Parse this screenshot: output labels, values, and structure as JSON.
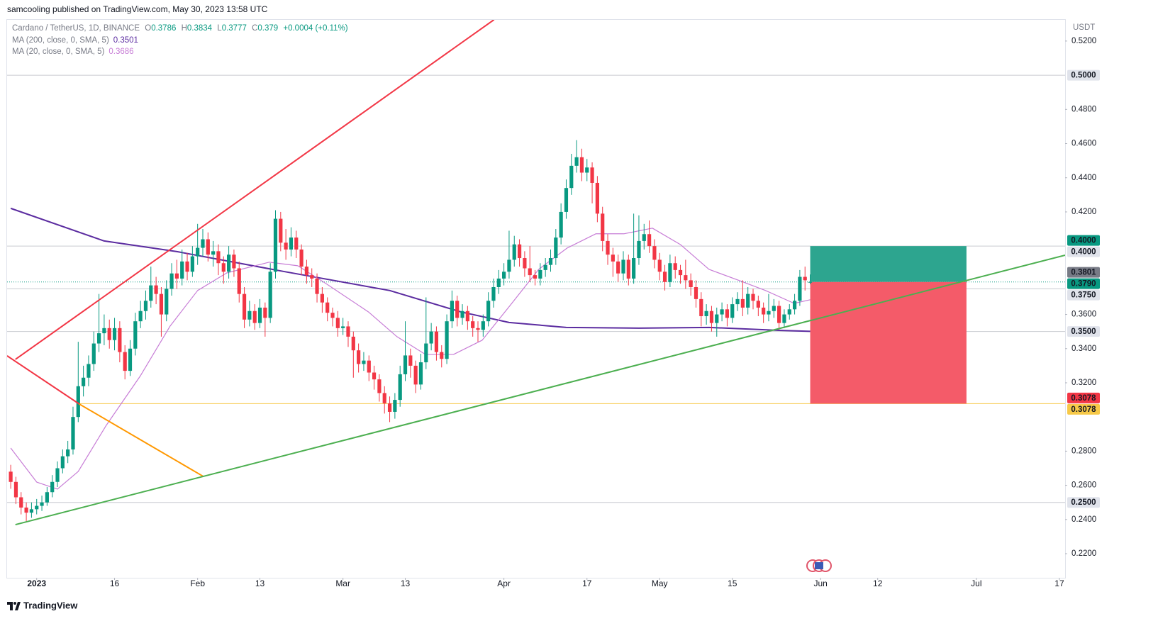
{
  "chart_data": {
    "type": "candlestick",
    "publisher": "samcooling published on TradingView.com, May 30, 2023 13:58 UTC",
    "title": "Cardano / TetherUS, 1D, BINANCE",
    "ohlc_labels": [
      "O",
      "H",
      "L",
      "C"
    ],
    "change": "+0.0004 (+0.11%)",
    "currency": "USDT",
    "brand": "TradingView",
    "up_color": "#089981",
    "down_color": "#f23645",
    "open": [
      0.268,
      0.262,
      0.253,
      0.247,
      0.244,
      0.246,
      0.248,
      0.25,
      0.256,
      0.262,
      0.27,
      0.277,
      0.281,
      0.3,
      0.318,
      0.323,
      0.331,
      0.343,
      0.349,
      0.352,
      0.345,
      0.352,
      0.338,
      0.327,
      0.34,
      0.356,
      0.362,
      0.368,
      0.377,
      0.372,
      0.36,
      0.375,
      0.384,
      0.381,
      0.391,
      0.385,
      0.394,
      0.399,
      0.404,
      0.395,
      0.397,
      0.39,
      0.385,
      0.395,
      0.387,
      0.372,
      0.357,
      0.362,
      0.355,
      0.364,
      0.358,
      0.385,
      0.416,
      0.402,
      0.398,
      0.405,
      0.398,
      0.388,
      0.383,
      0.381,
      0.372,
      0.367,
      0.361,
      0.358,
      0.352,
      0.353,
      0.347,
      0.339,
      0.331,
      0.333,
      0.326,
      0.322,
      0.314,
      0.308,
      0.303,
      0.31,
      0.325,
      0.336,
      0.33,
      0.319,
      0.332,
      0.343,
      0.35,
      0.338,
      0.334,
      0.356,
      0.368,
      0.358,
      0.362,
      0.356,
      0.352,
      0.351,
      0.356,
      0.368,
      0.376,
      0.381,
      0.385,
      0.392,
      0.401,
      0.393,
      0.387,
      0.383,
      0.381,
      0.386,
      0.389,
      0.393,
      0.405,
      0.42,
      0.434,
      0.447,
      0.452,
      0.443,
      0.446,
      0.437,
      0.419,
      0.403,
      0.395,
      0.391,
      0.384,
      0.392,
      0.381,
      0.393,
      0.403,
      0.407,
      0.4,
      0.392,
      0.385,
      0.379,
      0.39,
      0.386,
      0.383,
      0.38,
      0.376,
      0.369,
      0.359,
      0.362,
      0.355,
      0.36,
      0.363,
      0.358,
      0.366,
      0.369,
      0.364,
      0.372,
      0.368,
      0.364,
      0.36,
      0.362,
      0.365,
      0.355,
      0.36,
      0.363,
      0.368,
      0.382,
      0.3786
    ],
    "high": [
      0.272,
      0.265,
      0.256,
      0.25,
      0.25,
      0.252,
      0.254,
      0.259,
      0.266,
      0.274,
      0.281,
      0.286,
      0.306,
      0.344,
      0.33,
      0.336,
      0.35,
      0.372,
      0.36,
      0.357,
      0.358,
      0.356,
      0.342,
      0.345,
      0.361,
      0.368,
      0.374,
      0.388,
      0.382,
      0.376,
      0.38,
      0.39,
      0.392,
      0.398,
      0.396,
      0.4,
      0.413,
      0.41,
      0.408,
      0.403,
      0.401,
      0.394,
      0.4,
      0.398,
      0.391,
      0.376,
      0.368,
      0.366,
      0.369,
      0.367,
      0.39,
      0.421,
      0.42,
      0.41,
      0.411,
      0.409,
      0.401,
      0.392,
      0.387,
      0.384,
      0.376,
      0.37,
      0.364,
      0.362,
      0.358,
      0.356,
      0.35,
      0.343,
      0.338,
      0.336,
      0.33,
      0.325,
      0.318,
      0.312,
      0.314,
      0.33,
      0.356,
      0.34,
      0.333,
      0.337,
      0.37,
      0.355,
      0.353,
      0.342,
      0.36,
      0.374,
      0.371,
      0.366,
      0.365,
      0.359,
      0.356,
      0.36,
      0.373,
      0.381,
      0.386,
      0.39,
      0.409,
      0.406,
      0.404,
      0.397,
      0.4,
      0.386,
      0.39,
      0.393,
      0.398,
      0.41,
      0.425,
      0.439,
      0.454,
      0.462,
      0.457,
      0.451,
      0.449,
      0.441,
      0.423,
      0.407,
      0.399,
      0.395,
      0.397,
      0.395,
      0.419,
      0.418,
      0.413,
      0.415,
      0.404,
      0.396,
      0.389,
      0.395,
      0.394,
      0.389,
      0.392,
      0.384,
      0.38,
      0.373,
      0.366,
      0.365,
      0.364,
      0.367,
      0.366,
      0.37,
      0.373,
      0.38,
      0.376,
      0.375,
      0.371,
      0.367,
      0.372,
      0.369,
      0.368,
      0.363,
      0.366,
      0.372,
      0.386,
      0.388,
      0.3834
    ],
    "low": [
      0.258,
      0.249,
      0.243,
      0.239,
      0.241,
      0.243,
      0.245,
      0.248,
      0.253,
      0.259,
      0.267,
      0.273,
      0.278,
      0.297,
      0.312,
      0.318,
      0.327,
      0.338,
      0.342,
      0.34,
      0.339,
      0.332,
      0.322,
      0.324,
      0.336,
      0.352,
      0.357,
      0.364,
      0.366,
      0.347,
      0.356,
      0.371,
      0.375,
      0.377,
      0.38,
      0.382,
      0.389,
      0.394,
      0.391,
      0.388,
      0.383,
      0.378,
      0.381,
      0.382,
      0.367,
      0.352,
      0.353,
      0.351,
      0.352,
      0.347,
      0.355,
      0.381,
      0.397,
      0.392,
      0.394,
      0.393,
      0.383,
      0.378,
      0.376,
      0.367,
      0.361,
      0.356,
      0.353,
      0.347,
      0.348,
      0.341,
      0.323,
      0.326,
      0.327,
      0.321,
      0.316,
      0.309,
      0.302,
      0.297,
      0.299,
      0.306,
      0.321,
      0.323,
      0.314,
      0.316,
      0.328,
      0.339,
      0.333,
      0.329,
      0.331,
      0.352,
      0.353,
      0.354,
      0.351,
      0.347,
      0.344,
      0.347,
      0.353,
      0.364,
      0.372,
      0.377,
      0.381,
      0.388,
      0.388,
      0.382,
      0.379,
      0.377,
      0.377,
      0.382,
      0.385,
      0.389,
      0.401,
      0.416,
      0.43,
      0.443,
      0.438,
      0.438,
      0.425,
      0.414,
      0.397,
      0.389,
      0.382,
      0.379,
      0.38,
      0.377,
      0.378,
      0.389,
      0.398,
      0.396,
      0.387,
      0.38,
      0.374,
      0.376,
      0.381,
      0.378,
      0.375,
      0.371,
      0.364,
      0.353,
      0.354,
      0.35,
      0.347,
      0.356,
      0.353,
      0.355,
      0.362,
      0.359,
      0.36,
      0.363,
      0.359,
      0.355,
      0.356,
      0.358,
      0.351,
      0.352,
      0.357,
      0.36,
      0.365,
      0.374,
      0.3777
    ],
    "close": [
      0.262,
      0.253,
      0.247,
      0.244,
      0.246,
      0.248,
      0.25,
      0.256,
      0.262,
      0.27,
      0.277,
      0.281,
      0.3,
      0.318,
      0.323,
      0.331,
      0.343,
      0.349,
      0.352,
      0.345,
      0.352,
      0.338,
      0.327,
      0.34,
      0.356,
      0.362,
      0.368,
      0.377,
      0.372,
      0.36,
      0.375,
      0.384,
      0.381,
      0.391,
      0.385,
      0.394,
      0.399,
      0.404,
      0.395,
      0.397,
      0.39,
      0.385,
      0.395,
      0.387,
      0.372,
      0.357,
      0.362,
      0.355,
      0.364,
      0.358,
      0.385,
      0.416,
      0.402,
      0.398,
      0.405,
      0.398,
      0.388,
      0.383,
      0.381,
      0.372,
      0.367,
      0.361,
      0.358,
      0.352,
      0.353,
      0.347,
      0.339,
      0.331,
      0.333,
      0.326,
      0.322,
      0.314,
      0.308,
      0.303,
      0.31,
      0.325,
      0.336,
      0.33,
      0.319,
      0.332,
      0.343,
      0.35,
      0.338,
      0.334,
      0.356,
      0.368,
      0.358,
      0.362,
      0.356,
      0.352,
      0.351,
      0.356,
      0.368,
      0.376,
      0.381,
      0.385,
      0.392,
      0.401,
      0.393,
      0.387,
      0.383,
      0.381,
      0.386,
      0.389,
      0.393,
      0.405,
      0.42,
      0.434,
      0.447,
      0.452,
      0.443,
      0.446,
      0.437,
      0.419,
      0.403,
      0.395,
      0.391,
      0.384,
      0.392,
      0.381,
      0.393,
      0.403,
      0.407,
      0.4,
      0.392,
      0.385,
      0.379,
      0.39,
      0.386,
      0.383,
      0.38,
      0.376,
      0.369,
      0.359,
      0.362,
      0.355,
      0.36,
      0.363,
      0.358,
      0.366,
      0.369,
      0.364,
      0.372,
      0.368,
      0.364,
      0.36,
      0.362,
      0.365,
      0.355,
      0.36,
      0.363,
      0.368,
      0.382,
      0.38,
      0.379
    ],
    "xlim": [
      -0.7,
      203.1
    ],
    "xticks": [
      {
        "value": 5,
        "label": "2023"
      },
      {
        "value": 20,
        "label": "16"
      },
      {
        "value": 36,
        "label": "Feb"
      },
      {
        "value": 48,
        "label": "13"
      },
      {
        "value": 64,
        "label": "Mar"
      },
      {
        "value": 76,
        "label": "13"
      },
      {
        "value": 95,
        "label": "Apr"
      },
      {
        "value": 111,
        "label": "17"
      },
      {
        "value": 125,
        "label": "May"
      },
      {
        "value": 139,
        "label": "15"
      },
      {
        "value": 156,
        "label": "Jun"
      },
      {
        "value": 167,
        "label": "12"
      },
      {
        "value": 186,
        "label": "Jul"
      },
      {
        "value": 202,
        "label": "17"
      }
    ],
    "ylim": [
      0.2059,
      0.5324
    ],
    "yticks": [
      {
        "value": 0.52,
        "label": "0.5200"
      },
      {
        "value": 0.48,
        "label": "0.4800"
      },
      {
        "value": 0.46,
        "label": "0.4600"
      },
      {
        "value": 0.44,
        "label": "0.4400"
      },
      {
        "value": 0.42,
        "label": "0.4200"
      },
      {
        "value": 0.36,
        "label": "0.3600"
      },
      {
        "value": 0.34,
        "label": "0.3400"
      },
      {
        "value": 0.32,
        "label": "0.3200"
      },
      {
        "value": 0.28,
        "label": "0.2800"
      },
      {
        "value": 0.26,
        "label": "0.2600"
      },
      {
        "value": 0.24,
        "label": "0.2400"
      },
      {
        "value": 0.22,
        "label": "0.2200"
      }
    ],
    "grid": false,
    "indicators": [
      {
        "name": "MA (200, close, 0, SMA, 5)",
        "color": "#5b2ca0",
        "x": [
          0,
          18,
          32,
          52.5,
          73,
          86.7,
          96,
          107,
          121,
          134.5,
          148,
          154
        ],
        "values": [
          0.4221,
          0.403,
          0.3968,
          0.3852,
          0.374,
          0.3615,
          0.3553,
          0.3524,
          0.352,
          0.3524,
          0.3507,
          0.3501
        ]
      },
      {
        "name": "MA (20, close, 0, SMA, 5)",
        "color": "#c77dd6",
        "x": [
          0,
          5,
          9,
          13,
          18.4,
          25,
          30.7,
          36,
          41.6,
          49.8,
          55.3,
          60.7,
          68.9,
          74.4,
          79.9,
          85.3,
          90.8,
          96.3,
          101.7,
          107.2,
          112.7,
          118.1,
          123.6,
          129,
          134.5,
          140,
          145.4,
          150.9,
          154
        ],
        "values": [
          0.2818,
          0.2619,
          0.2578,
          0.2681,
          0.2951,
          0.3242,
          0.3532,
          0.374,
          0.3843,
          0.3906,
          0.3885,
          0.3781,
          0.3615,
          0.347,
          0.3366,
          0.3366,
          0.3449,
          0.3657,
          0.3864,
          0.3989,
          0.4072,
          0.4072,
          0.4105,
          0.4009,
          0.3864,
          0.3802,
          0.374,
          0.3665,
          0.3686
        ]
      }
    ],
    "drawings": [
      {
        "color": "#f23645",
        "x": [
          0.9,
          93.1
        ],
        "values": [
          0.3337,
          0.5325
        ]
      },
      {
        "color": "#f23645",
        "x": [
          -0.7,
          13.2
        ],
        "values": [
          0.3358,
          0.3076
        ]
      },
      {
        "color": "#ff9800",
        "x": [
          13.2,
          37.1
        ],
        "values": [
          0.3076,
          0.2652
        ]
      },
      {
        "color": "#4caf50",
        "x": [
          0.9,
          203.1
        ],
        "values": [
          0.237,
          0.3947
        ]
      }
    ],
    "hlines": [
      {
        "value": 0.5,
        "color": "#c9cbd1"
      },
      {
        "value": 0.4,
        "color": "#c9cbd1"
      },
      {
        "value": 0.375,
        "color": "#c9cbd1"
      },
      {
        "value": 0.35,
        "color": "#c9cbd1"
      },
      {
        "value": 0.25,
        "color": "#c9cbd1"
      },
      {
        "value": 0.3078,
        "color": "#f7c948",
        "from": 13.2
      },
      {
        "value": 0.379,
        "color": "#089981",
        "dashed": true
      }
    ],
    "position": {
      "x": [
        154,
        184.1
      ],
      "top": 0.4,
      "entry": 0.379,
      "stop": 0.3078,
      "profit_color": "#2da58f",
      "loss_color": "#f45b69"
    },
    "price_labels": [
      {
        "value": 0.5,
        "label": "0.5000",
        "color": "#e0e3eb",
        "text_color": "#131722"
      },
      {
        "value": 0.4,
        "label": "0.4000",
        "color": "#089981",
        "text_color": "#ffffff"
      },
      {
        "value": 0.4,
        "label": "0.4000",
        "color": "#e0e3eb",
        "text_color": "#131722"
      },
      {
        "value": 0.3801,
        "label": "0.3801",
        "color": "#787b86",
        "text_color": "#ffffff"
      },
      {
        "value": 0.379,
        "label": "0.3790",
        "color": "#089981",
        "text_color": "#ffffff"
      },
      {
        "value": 0.375,
        "label": "0.3750",
        "color": "#e0e3eb",
        "text_color": "#131722"
      },
      {
        "value": 0.35,
        "label": "0.3500",
        "color": "#e0e3eb",
        "text_color": "#131722"
      },
      {
        "value": 0.3078,
        "label": "0.3078",
        "color": "#f23645",
        "text_color": "#ffffff"
      },
      {
        "value": 0.3078,
        "label": "0.3078",
        "color": "#f7c948",
        "text_color": "#131722"
      },
      {
        "value": 0.25,
        "label": "0.2500",
        "color": "#e0e3eb",
        "text_color": "#131722"
      }
    ]
  }
}
